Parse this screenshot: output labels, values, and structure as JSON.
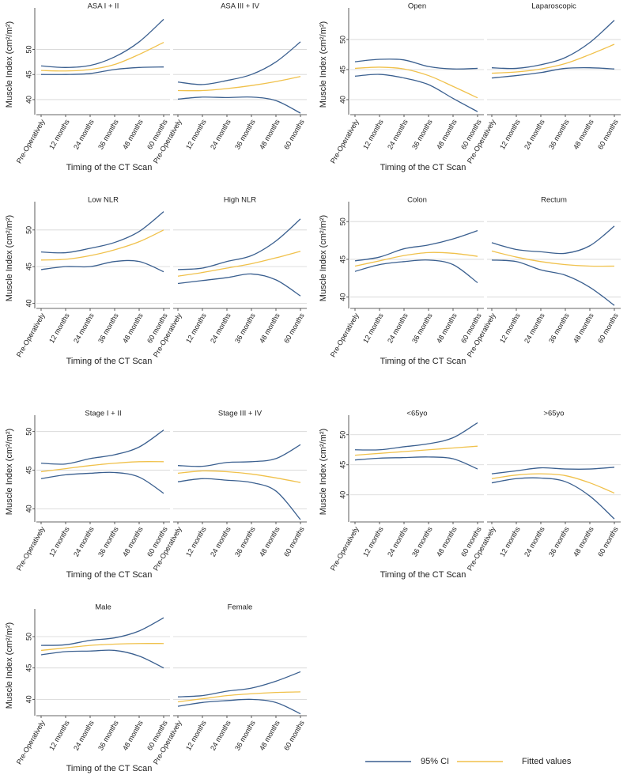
{
  "chart_data": [
    {
      "type": "line",
      "y_label": "Muscle Index (cm²/m²)",
      "x_label": "Timing of the CT Scan",
      "categories": [
        "Pre-Operatively",
        "12 months",
        "24 months",
        "36 months",
        "48 months",
        "60 months"
      ],
      "ylim": [
        37,
        57
      ],
      "yticks": [
        40,
        45,
        50
      ],
      "grid": true,
      "panels": [
        {
          "title": "ASA I + II",
          "series": [
            {
              "name": "95% CI",
              "color": "#3a5f8f",
              "values": [
                46.7,
                46.4,
                46.8,
                48.5,
                51.5,
                56
              ]
            },
            {
              "name": "95% CI",
              "color": "#3a5f8f",
              "values": [
                45,
                45,
                45.2,
                46,
                46.4,
                46.5
              ]
            },
            {
              "name": "Fitted values",
              "color": "#f0c14b",
              "values": [
                45.8,
                45.7,
                46,
                47,
                49,
                51.4
              ]
            }
          ]
        },
        {
          "title": "ASA III + IV",
          "series": [
            {
              "name": "95% CI",
              "color": "#3a5f8f",
              "values": [
                43.5,
                43,
                43.8,
                45,
                47.5,
                51.5
              ]
            },
            {
              "name": "95% CI",
              "color": "#3a5f8f",
              "values": [
                40.1,
                40.5,
                40.4,
                40.5,
                39.8,
                37.3
              ]
            },
            {
              "name": "Fitted values",
              "color": "#f0c14b",
              "values": [
                41.8,
                41.8,
                42.2,
                42.8,
                43.6,
                44.6
              ]
            }
          ]
        }
      ]
    },
    {
      "type": "line",
      "y_label": "Muscle Index (cm²/m²)",
      "x_label": "Timing of the CT Scan",
      "categories": [
        "Pre-Operatively",
        "12 months",
        "24 months",
        "36 months",
        "48 months",
        "60 months"
      ],
      "ylim": [
        37.5,
        54.2
      ],
      "yticks": [
        40,
        45,
        50
      ],
      "grid": true,
      "panels": [
        {
          "title": "Open",
          "series": [
            {
              "name": "95% CI",
              "color": "#3a5f8f",
              "values": [
                46.3,
                46.7,
                46.6,
                45.5,
                45.1,
                45.2
              ]
            },
            {
              "name": "95% CI",
              "color": "#3a5f8f",
              "values": [
                43.9,
                44.2,
                43.6,
                42.5,
                40.2,
                38
              ]
            },
            {
              "name": "Fitted values",
              "color": "#f0c14b",
              "values": [
                45.2,
                45.4,
                45.1,
                44,
                42.2,
                40.3
              ]
            }
          ]
        },
        {
          "title": "Laparoscopic",
          "series": [
            {
              "name": "95% CI",
              "color": "#3a5f8f",
              "values": [
                45.3,
                45.2,
                45.8,
                47,
                49.5,
                53.2
              ]
            },
            {
              "name": "95% CI",
              "color": "#3a5f8f",
              "values": [
                43.6,
                44,
                44.5,
                45.2,
                45.3,
                45.1
              ]
            },
            {
              "name": "Fitted values",
              "color": "#f0c14b",
              "values": [
                44.4,
                44.6,
                45.1,
                46,
                47.5,
                49.2
              ]
            }
          ]
        }
      ]
    },
    {
      "type": "line",
      "y_label": "Muscle Index (cm²/m²)",
      "x_label": "Timing of the CT Scan",
      "categories": [
        "Pre-Operatively",
        "12 months",
        "24 months",
        "36 months",
        "48 months",
        "60 months"
      ],
      "ylim": [
        39.3,
        53
      ],
      "yticks": [
        40,
        45,
        50
      ],
      "grid": true,
      "panels": [
        {
          "title": "Low NLR",
          "series": [
            {
              "name": "95% CI",
              "color": "#3a5f8f",
              "values": [
                47,
                46.9,
                47.5,
                48.3,
                49.8,
                52.5
              ]
            },
            {
              "name": "95% CI",
              "color": "#3a5f8f",
              "values": [
                44.6,
                45,
                45,
                45.7,
                45.7,
                44.3
              ]
            },
            {
              "name": "Fitted values",
              "color": "#f0c14b",
              "values": [
                45.9,
                46,
                46.5,
                47.3,
                48.4,
                50
              ]
            }
          ]
        },
        {
          "title": "High NLR",
          "series": [
            {
              "name": "95% CI",
              "color": "#3a5f8f",
              "values": [
                44.6,
                44.8,
                45.7,
                46.5,
                48.5,
                51.5
              ]
            },
            {
              "name": "95% CI",
              "color": "#3a5f8f",
              "values": [
                42.7,
                43.1,
                43.5,
                44,
                43.2,
                41
              ]
            },
            {
              "name": "Fitted values",
              "color": "#f0c14b",
              "values": [
                43.7,
                44.2,
                44.8,
                45.4,
                46.2,
                47.1
              ]
            }
          ]
        }
      ]
    },
    {
      "type": "line",
      "y_label": "Muscle Index (cm²/m²)",
      "x_label": "Timing of the CT Scan",
      "categories": [
        "Pre-Operatively",
        "12 months",
        "24 months",
        "36 months",
        "48 months",
        "60 months"
      ],
      "ylim": [
        38.5,
        51.8
      ],
      "yticks": [
        40,
        45,
        50
      ],
      "grid": true,
      "panels": [
        {
          "title": "Colon",
          "series": [
            {
              "name": "95% CI",
              "color": "#3a5f8f",
              "values": [
                44.8,
                45.3,
                46.4,
                46.9,
                47.7,
                48.8
              ]
            },
            {
              "name": "95% CI",
              "color": "#3a5f8f",
              "values": [
                43.4,
                44.3,
                44.7,
                44.9,
                44.3,
                41.9
              ]
            },
            {
              "name": "Fitted values",
              "color": "#f0c14b",
              "values": [
                44.1,
                44.8,
                45.5,
                45.9,
                45.8,
                45.4
              ]
            }
          ]
        },
        {
          "title": "Rectum",
          "series": [
            {
              "name": "95% CI",
              "color": "#3a5f8f",
              "values": [
                47.2,
                46.3,
                46,
                45.8,
                46.8,
                49.4
              ]
            },
            {
              "name": "95% CI",
              "color": "#3a5f8f",
              "values": [
                44.9,
                44.7,
                43.6,
                42.9,
                41.3,
                38.9
              ]
            },
            {
              "name": "Fitted values",
              "color": "#f0c14b",
              "values": [
                46.1,
                45.3,
                44.7,
                44.3,
                44.1,
                44.1
              ]
            }
          ]
        }
      ]
    },
    {
      "type": "line",
      "y_label": "Muscle Index (cm²/m²)",
      "x_label": "Timing of the CT Scan",
      "categories": [
        "Pre-Operatively",
        "12 months",
        "24 months",
        "36 months",
        "48 months",
        "60 months"
      ],
      "ylim": [
        38.3,
        51.3
      ],
      "yticks": [
        40,
        45,
        50
      ],
      "grid": true,
      "panels": [
        {
          "title": "Stage I + II",
          "series": [
            {
              "name": "95% CI",
              "color": "#3a5f8f",
              "values": [
                45.9,
                45.8,
                46.5,
                47,
                48,
                50.2
              ]
            },
            {
              "name": "95% CI",
              "color": "#3a5f8f",
              "values": [
                43.9,
                44.4,
                44.6,
                44.7,
                44.1,
                42
              ]
            },
            {
              "name": "Fitted values",
              "color": "#f0c14b",
              "values": [
                44.8,
                45.2,
                45.6,
                45.9,
                46.1,
                46.1
              ]
            }
          ]
        },
        {
          "title": "Stage III + IV",
          "series": [
            {
              "name": "95% CI",
              "color": "#3a5f8f",
              "values": [
                45.6,
                45.5,
                46,
                46.1,
                46.5,
                48.3
              ]
            },
            {
              "name": "95% CI",
              "color": "#3a5f8f",
              "values": [
                43.5,
                43.9,
                43.7,
                43.4,
                42.3,
                38.6
              ]
            },
            {
              "name": "Fitted values",
              "color": "#f0c14b",
              "values": [
                44.6,
                44.9,
                44.8,
                44.5,
                44,
                43.4
              ]
            }
          ]
        }
      ]
    },
    {
      "type": "line",
      "y_label": "Muscle Index (cm²/m²)",
      "x_label": "Timing of the CT Scan",
      "categories": [
        "Pre-Operatively",
        "12 months",
        "24 months",
        "36 months",
        "48 months",
        "60 months"
      ],
      "ylim": [
        35.5,
        52.2
      ],
      "yticks": [
        40,
        45,
        50
      ],
      "grid": true,
      "panels": [
        {
          "title": "<65yo",
          "series": [
            {
              "name": "95% CI",
              "color": "#3a5f8f",
              "values": [
                47.5,
                47.5,
                48,
                48.5,
                49.5,
                52
              ]
            },
            {
              "name": "95% CI",
              "color": "#3a5f8f",
              "values": [
                45.8,
                46.1,
                46.2,
                46.3,
                46,
                44.3
              ]
            },
            {
              "name": "Fitted values",
              "color": "#f0c14b",
              "values": [
                46.6,
                46.9,
                47.2,
                47.5,
                47.8,
                48.1
              ]
            }
          ]
        },
        {
          "title": ">65yo",
          "series": [
            {
              "name": "95% CI",
              "color": "#3a5f8f",
              "values": [
                43.5,
                44,
                44.5,
                44.3,
                44.3,
                44.6
              ]
            },
            {
              "name": "95% CI",
              "color": "#3a5f8f",
              "values": [
                42,
                42.7,
                42.8,
                42.2,
                39.8,
                36
              ]
            },
            {
              "name": "Fitted values",
              "color": "#f0c14b",
              "values": [
                42.7,
                43.3,
                43.5,
                43.2,
                42,
                40.3
              ]
            }
          ]
        }
      ]
    },
    {
      "type": "line",
      "y_label": "Muscle Index (cm²/m²)",
      "x_label": "Timing of the CT Scan",
      "categories": [
        "Pre-Operatively",
        "12 months",
        "24 months",
        "36 months",
        "48 months",
        "60 months"
      ],
      "ylim": [
        37.4,
        53.4
      ],
      "yticks": [
        40,
        45,
        50
      ],
      "grid": true,
      "panels": [
        {
          "title": "Male",
          "series": [
            {
              "name": "95% CI",
              "color": "#3a5f8f",
              "values": [
                48.6,
                48.7,
                49.4,
                49.8,
                50.9,
                53
              ]
            },
            {
              "name": "95% CI",
              "color": "#3a5f8f",
              "values": [
                47.1,
                47.6,
                47.7,
                47.8,
                46.9,
                45
              ]
            },
            {
              "name": "Fitted values",
              "color": "#f0c14b",
              "values": [
                47.8,
                48.2,
                48.6,
                48.8,
                48.9,
                48.9
              ]
            }
          ]
        },
        {
          "title": "Female",
          "series": [
            {
              "name": "95% CI",
              "color": "#3a5f8f",
              "values": [
                40.4,
                40.6,
                41.3,
                41.8,
                42.9,
                44.4
              ]
            },
            {
              "name": "95% CI",
              "color": "#3a5f8f",
              "values": [
                38.9,
                39.5,
                39.8,
                40,
                39.5,
                37.7
              ]
            },
            {
              "name": "Fitted values",
              "color": "#f0c14b",
              "values": [
                39.6,
                40.1,
                40.6,
                40.9,
                41.1,
                41.2
              ]
            }
          ]
        }
      ]
    }
  ]
}
